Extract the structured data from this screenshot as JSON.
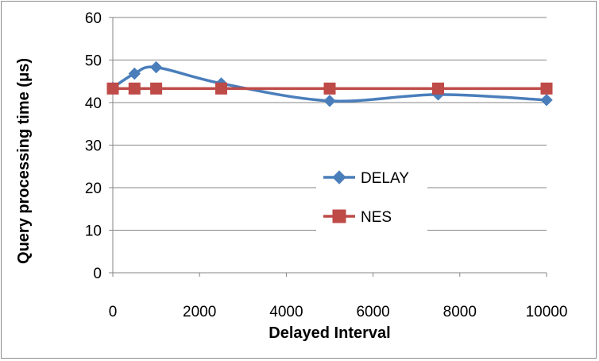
{
  "chart_data": {
    "type": "line",
    "title": "",
    "xlabel": "Delayed Interval",
    "ylabel": "Query processing time (μs)",
    "xlim": [
      0,
      10000
    ],
    "ylim": [
      0,
      60
    ],
    "xticks": [
      0,
      2000,
      4000,
      6000,
      8000,
      10000
    ],
    "yticks": [
      0,
      10,
      20,
      30,
      40,
      50,
      60
    ],
    "grid": "horizontal",
    "legend_position": "center-right",
    "series": [
      {
        "name": "DELAY",
        "color": "#4a7ebb",
        "marker": "diamond",
        "smooth": true,
        "x": [
          0,
          500,
          1000,
          2500,
          5000,
          7500,
          10000
        ],
        "y": [
          43.5,
          46.8,
          48.3,
          44.5,
          40.4,
          41.9,
          40.6
        ]
      },
      {
        "name": "NES",
        "color": "#be4b48",
        "marker": "square",
        "smooth": false,
        "x": [
          0,
          500,
          1000,
          2500,
          5000,
          7500,
          10000
        ],
        "y": [
          43.3,
          43.3,
          43.3,
          43.3,
          43.3,
          43.3,
          43.3
        ]
      }
    ]
  }
}
